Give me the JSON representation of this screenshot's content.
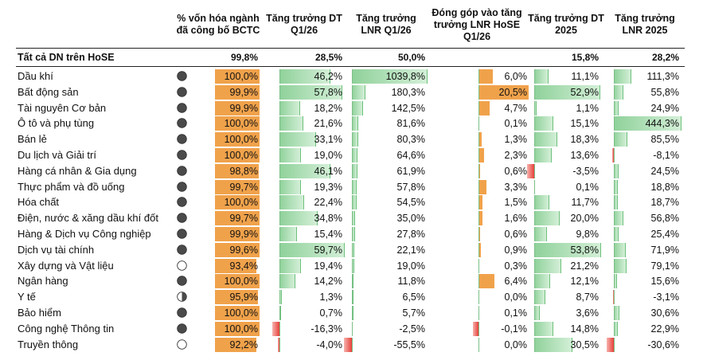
{
  "headers": {
    "coverage": "% vốn hóa ngành đã công bố BCTC",
    "rev_q1": "Tăng trưởng DT Q1/26",
    "np_q1": "Tăng trưởng LNR Q1/26",
    "contrib": "Đóng góp vào tăng trưởng LNR HoSE Q1/26",
    "rev_2025": "Tăng trưởng DT 2025",
    "np_2025": "Tăng trưởng LNR 2025"
  },
  "colors": {
    "coverage_bar": "#f0a24b",
    "positive_bar": "#8fd19a",
    "negative_bar": "#e8403a",
    "contrib_bar": "#f0a24b",
    "pie_fill": "#4a4a4a"
  },
  "total": {
    "label": "Tất cả DN trên HoSE",
    "coverage": "99,8%",
    "rev_q1": "28,5%",
    "np_q1": "50,0%",
    "rev_2025": "15,8%",
    "np_2025": "28,2%"
  },
  "rows": [
    {
      "label": "Dầu khí",
      "pie": 1,
      "coverage": "100,0%",
      "rev_q1": "46,2%",
      "np_q1": "1039,8%",
      "contrib": "6,0%",
      "rev_2025": "11,1%",
      "np_2025": "111,3%"
    },
    {
      "label": "Bất động sản",
      "pie": 1,
      "coverage": "99,9%",
      "rev_q1": "57,8%",
      "np_q1": "180,3%",
      "contrib": "20,5%",
      "rev_2025": "52,9%",
      "np_2025": "55,8%"
    },
    {
      "label": "Tài nguyên Cơ bản",
      "pie": 1,
      "coverage": "99,9%",
      "rev_q1": "18,2%",
      "np_q1": "142,5%",
      "contrib": "4,7%",
      "rev_2025": "1,1%",
      "np_2025": "24,9%"
    },
    {
      "label": "Ô tô và phụ tùng",
      "pie": 1,
      "coverage": "100,0%",
      "rev_q1": "21,6%",
      "np_q1": "81,6%",
      "contrib": "0,1%",
      "rev_2025": "15,1%",
      "np_2025": "444,3%"
    },
    {
      "label": "Bán lẻ",
      "pie": 1,
      "coverage": "100,0%",
      "rev_q1": "33,1%",
      "np_q1": "80,3%",
      "contrib": "1,3%",
      "rev_2025": "18,3%",
      "np_2025": "85,5%"
    },
    {
      "label": "Du lịch và Giải trí",
      "pie": 1,
      "coverage": "100,0%",
      "rev_q1": "19,0%",
      "np_q1": "64,6%",
      "contrib": "2,3%",
      "rev_2025": "13,6%",
      "np_2025": "-8,1%"
    },
    {
      "label": "Hàng cá nhân & Gia dụng",
      "pie": 1,
      "coverage": "98,8%",
      "rev_q1": "46,1%",
      "np_q1": "61,9%",
      "contrib": "0,6%",
      "rev_2025": "-3,5%",
      "np_2025": "24,5%"
    },
    {
      "label": "Thực phẩm và đồ uống",
      "pie": 1,
      "coverage": "99,7%",
      "rev_q1": "19,3%",
      "np_q1": "57,8%",
      "contrib": "3,3%",
      "rev_2025": "0,1%",
      "np_2025": "18,8%"
    },
    {
      "label": "Hóa chất",
      "pie": 1,
      "coverage": "100,0%",
      "rev_q1": "22,4%",
      "np_q1": "54,5%",
      "contrib": "1,5%",
      "rev_2025": "11,7%",
      "np_2025": "18,7%"
    },
    {
      "label": "Điện, nước & xăng dầu khí đốt",
      "pie": 1,
      "coverage": "99,7%",
      "rev_q1": "34,8%",
      "np_q1": "35,0%",
      "contrib": "1,6%",
      "rev_2025": "20,0%",
      "np_2025": "56,8%"
    },
    {
      "label": "Hàng & Dịch vụ Công nghiệp",
      "pie": 1,
      "coverage": "99,9%",
      "rev_q1": "15,4%",
      "np_q1": "27,8%",
      "contrib": "0,6%",
      "rev_2025": "9,8%",
      "np_2025": "25,4%"
    },
    {
      "label": "Dịch vụ tài chính",
      "pie": 1,
      "coverage": "99,6%",
      "rev_q1": "59,7%",
      "np_q1": "22,1%",
      "contrib": "0,9%",
      "rev_2025": "53,8%",
      "np_2025": "71,9%"
    },
    {
      "label": "Xây dựng và Vật liệu",
      "pie": 0,
      "coverage": "93,4%",
      "rev_q1": "19,4%",
      "np_q1": "19,0%",
      "contrib": "0,3%",
      "rev_2025": "21,2%",
      "np_2025": "79,1%"
    },
    {
      "label": "Ngân hàng",
      "pie": 1,
      "coverage": "100,0%",
      "rev_q1": "14,2%",
      "np_q1": "11,8%",
      "contrib": "6,4%",
      "rev_2025": "12,1%",
      "np_2025": "15,6%"
    },
    {
      "label": "Y tế",
      "pie": 0.5,
      "coverage": "95,9%",
      "rev_q1": "1,3%",
      "np_q1": "6,5%",
      "contrib": "0,0%",
      "rev_2025": "8,7%",
      "np_2025": "-3,1%"
    },
    {
      "label": "Bảo hiểm",
      "pie": 1,
      "coverage": "100,0%",
      "rev_q1": "0,7%",
      "np_q1": "5,7%",
      "contrib": "0,1%",
      "rev_2025": "3,6%",
      "np_2025": "30,6%"
    },
    {
      "label": "Công nghệ Thông tin",
      "pie": 1,
      "coverage": "100,0%",
      "rev_q1": "-16,3%",
      "np_q1": "-2,5%",
      "contrib": "-0,1%",
      "rev_2025": "14,8%",
      "np_2025": "22,9%"
    },
    {
      "label": "Truyền thông",
      "pie": 0,
      "coverage": "92,2%",
      "rev_q1": "-4,0%",
      "np_q1": "-55,5%",
      "contrib": "0,0%",
      "rev_2025": "30,5%",
      "np_2025": "-30,6%"
    }
  ]
}
